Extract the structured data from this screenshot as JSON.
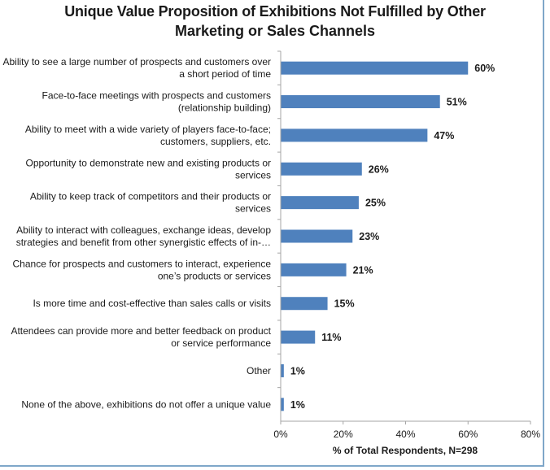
{
  "chart_data": {
    "type": "bar",
    "orientation": "horizontal",
    "title": "Unique Value Proposition of Exhibitions Not Fulfilled by Other Marketing or Sales Channels",
    "title_lines": [
      "Unique Value Proposition of Exhibitions Not Fulfilled by Other",
      "Marketing or Sales Channels"
    ],
    "categories": [
      [
        "Ability to see a large number of prospects and customers over",
        "a short period of time"
      ],
      [
        "Face-to-face meetings with prospects and customers",
        "(relationship building)"
      ],
      [
        "Ability to meet with a wide variety of players face-to-face;",
        "customers, suppliers, etc."
      ],
      [
        "Opportunity to demonstrate new and existing products or",
        "services"
      ],
      [
        "Ability to keep track of competitors and their products or",
        "services"
      ],
      [
        "Ability to interact with colleagues, exchange ideas, develop",
        "strategies and benefit from other synergistic effects of in-…"
      ],
      [
        "Chance for prospects and customers to interact, experience",
        "one’s products or services"
      ],
      [
        "Is more time and cost-effective than sales calls or visits"
      ],
      [
        "Attendees can provide more and better feedback on product",
        "or service performance"
      ],
      [
        "Other"
      ],
      [
        "None of the above, exhibitions do not offer a unique value"
      ]
    ],
    "values": [
      60,
      51,
      47,
      26,
      25,
      23,
      21,
      15,
      11,
      1,
      1
    ],
    "value_labels": [
      "60%",
      "51%",
      "47%",
      "26%",
      "25%",
      "23%",
      "21%",
      "15%",
      "11%",
      "1%",
      "1%"
    ],
    "xlabel": "% of Total Respondents, N=298",
    "ylabel": "",
    "xlim": [
      0,
      80
    ],
    "xticks": [
      0,
      20,
      40,
      60,
      80
    ],
    "xtick_labels": [
      "0%",
      "20%",
      "40%",
      "60%",
      "80%"
    ],
    "bar_color": "#4f81bd",
    "axis_color": "#a6a6a6",
    "grid": false,
    "legend": "none"
  }
}
